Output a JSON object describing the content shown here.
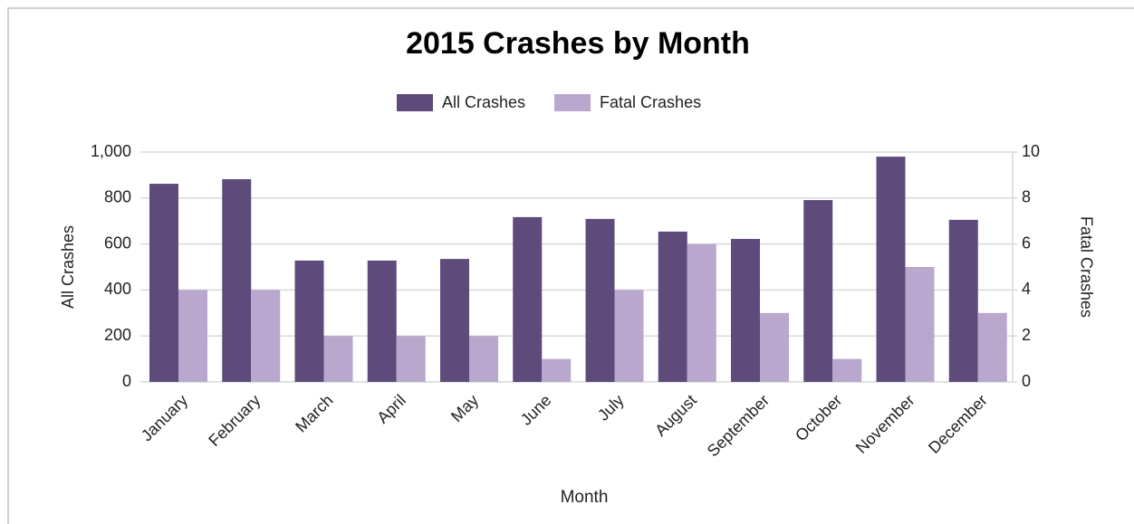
{
  "chart_data": {
    "type": "bar",
    "title": "2015 Crashes by Month",
    "categories": [
      "January",
      "February",
      "March",
      "April",
      "May",
      "June",
      "July",
      "August",
      "September",
      "October",
      "November",
      "December"
    ],
    "series": [
      {
        "name": "All Crashes",
        "color": "#5f4a7c",
        "values": [
          862,
          882,
          528,
          528,
          535,
          717,
          709,
          654,
          622,
          791,
          980,
          705
        ]
      },
      {
        "name": "Fatal Crashes",
        "color": "#b9a7ce",
        "axis": "y2",
        "values": [
          4,
          4,
          2,
          2,
          2,
          1,
          4,
          6,
          3,
          1,
          5,
          3
        ]
      }
    ],
    "xlabel": "Month",
    "ylabel": "All Crashes",
    "y2label": "Fatal Crashes",
    "ylim": [
      0,
      1000
    ],
    "yticks": [
      0,
      200,
      400,
      600,
      800,
      {
        "value": 1000,
        "label": "1,000"
      }
    ],
    "y2lim": [
      0,
      10
    ],
    "y2ticks": [
      0,
      2,
      4,
      6,
      8,
      10
    ],
    "grid": true,
    "legend": "top"
  }
}
